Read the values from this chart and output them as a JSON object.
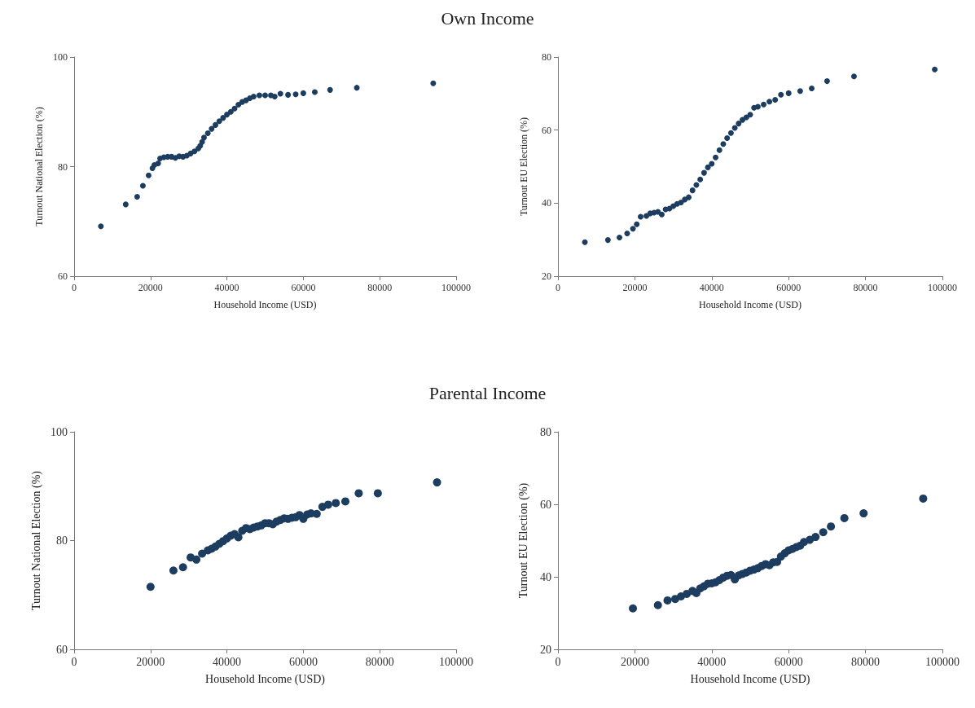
{
  "chart_data": [
    {
      "type": "scatter",
      "title": "Own Income",
      "xlabel": "Household Income (USD)",
      "ylabel": "Turnout National Election (%)",
      "marker": "circle",
      "xlim": [
        0,
        100000
      ],
      "xticks": [
        0,
        20000,
        40000,
        60000,
        80000,
        100000
      ],
      "ylim": [
        60,
        100
      ],
      "yticks": [
        60,
        80,
        100
      ],
      "x": [
        7000,
        13500,
        16500,
        18000,
        19500,
        20500,
        21000,
        22000,
        22500,
        23500,
        24500,
        25500,
        26500,
        27500,
        28500,
        29500,
        30500,
        31500,
        32500,
        33000,
        33500,
        34000,
        35000,
        36000,
        37000,
        38000,
        39000,
        40000,
        41000,
        42000,
        43000,
        44000,
        45000,
        46000,
        47000,
        48500,
        50000,
        51500,
        52500,
        54000,
        56000,
        58000,
        60000,
        63000,
        67000,
        74000,
        94000
      ],
      "series": [
        {
          "color": "#1c3d5f",
          "values": [
            69.1,
            73.1,
            74.5,
            76.5,
            78.4,
            79.7,
            80.3,
            80.6,
            81.5,
            81.7,
            81.8,
            81.8,
            81.6,
            81.9,
            81.8,
            82.0,
            82.4,
            82.8,
            83.3,
            83.8,
            84.5,
            85.3,
            86.1,
            86.9,
            87.6,
            88.3,
            88.9,
            89.5,
            90.0,
            90.6,
            91.3,
            91.8,
            92.1,
            92.5,
            92.8,
            93.0,
            93.0,
            93.0,
            92.8,
            93.3,
            93.1,
            93.2,
            93.4,
            93.6,
            94.0,
            94.4,
            95.2
          ]
        }
      ]
    },
    {
      "type": "scatter",
      "xlabel": "Household Income (USD)",
      "ylabel": "Turnout EU Election (%)",
      "marker": "circle",
      "xlim": [
        0,
        100000
      ],
      "xticks": [
        0,
        20000,
        40000,
        60000,
        80000,
        100000
      ],
      "ylim": [
        20,
        80
      ],
      "yticks": [
        20,
        40,
        60,
        80
      ],
      "x": [
        7000,
        13000,
        16000,
        18000,
        19500,
        20500,
        21500,
        23000,
        24000,
        25000,
        26000,
        27000,
        28000,
        29000,
        30000,
        31000,
        32000,
        33000,
        34000,
        35000,
        36000,
        37000,
        38000,
        39000,
        40000,
        41000,
        42000,
        43000,
        44000,
        45000,
        46000,
        47000,
        48000,
        49000,
        50000,
        51000,
        52000,
        53500,
        55000,
        56500,
        58000,
        60000,
        63000,
        66000,
        70000,
        77000,
        98000
      ],
      "series": [
        {
          "color": "#1c3d5f",
          "values": [
            29.3,
            29.9,
            30.6,
            31.7,
            33.0,
            34.2,
            36.3,
            36.5,
            37.2,
            37.4,
            37.6,
            36.9,
            38.3,
            38.5,
            39.2,
            39.8,
            40.2,
            41.0,
            41.6,
            43.5,
            45.0,
            46.5,
            48.3,
            49.8,
            50.8,
            52.5,
            54.5,
            56.2,
            57.8,
            59.2,
            60.6,
            61.8,
            62.8,
            63.5,
            64.2,
            66.1,
            66.4,
            67.0,
            67.8,
            68.3,
            69.7,
            70.1,
            70.7,
            71.4,
            73.4,
            74.7,
            76.6
          ]
        }
      ]
    },
    {
      "type": "scatter",
      "title": "Parental Income",
      "xlabel": "Household Income (USD)",
      "ylabel": "Turnout National Election (%)",
      "marker": "circle",
      "xlim": [
        0,
        100000
      ],
      "xticks": [
        0,
        20000,
        40000,
        60000,
        80000,
        100000
      ],
      "ylim": [
        60,
        100
      ],
      "yticks": [
        60,
        80,
        100
      ],
      "x": [
        20000,
        26000,
        28500,
        30500,
        32000,
        33500,
        35000,
        36000,
        37000,
        38000,
        39000,
        40000,
        41000,
        42000,
        43000,
        44000,
        45000,
        46000,
        47000,
        48000,
        49000,
        50000,
        51000,
        52000,
        53000,
        54000,
        55000,
        56000,
        57000,
        58000,
        59000,
        60000,
        61000,
        62000,
        63500,
        65000,
        66500,
        68500,
        71000,
        74500,
        79500,
        95000
      ],
      "series": [
        {
          "color": "#1c3d5f",
          "values": [
            71.5,
            74.5,
            75.1,
            76.9,
            76.5,
            77.6,
            78.2,
            78.5,
            78.9,
            79.4,
            79.9,
            80.4,
            80.9,
            81.2,
            80.6,
            81.8,
            82.3,
            82.1,
            82.4,
            82.6,
            82.8,
            83.2,
            83.2,
            83.0,
            83.5,
            83.8,
            84.1,
            84.0,
            84.2,
            84.3,
            84.7,
            84.0,
            84.8,
            85.0,
            84.9,
            86.2,
            86.6,
            86.9,
            87.2,
            88.7,
            88.7,
            90.7
          ]
        }
      ]
    },
    {
      "type": "scatter",
      "xlabel": "Household Income (USD)",
      "ylabel": "Turnout EU Election (%)",
      "marker": "circle",
      "xlim": [
        0,
        100000
      ],
      "xticks": [
        0,
        20000,
        40000,
        60000,
        80000,
        100000
      ],
      "ylim": [
        20,
        80
      ],
      "yticks": [
        20,
        40,
        60,
        80
      ],
      "x": [
        19500,
        26000,
        28500,
        30500,
        32000,
        33500,
        35000,
        36000,
        37000,
        38000,
        39000,
        40000,
        41000,
        42000,
        43000,
        44000,
        45000,
        46000,
        47000,
        48000,
        49000,
        50000,
        51000,
        52000,
        53000,
        54000,
        55000,
        56000,
        57000,
        58000,
        59000,
        60000,
        61000,
        62000,
        63000,
        64000,
        65500,
        67000,
        69000,
        71000,
        74500,
        79500,
        95000
      ],
      "series": [
        {
          "color": "#1c3d5f",
          "values": [
            31.3,
            32.2,
            33.5,
            33.9,
            34.6,
            35.3,
            36.1,
            35.5,
            36.8,
            37.4,
            38.1,
            38.2,
            38.5,
            39.1,
            39.8,
            40.3,
            40.5,
            39.3,
            40.4,
            40.8,
            41.2,
            41.7,
            42.0,
            42.4,
            43.0,
            43.5,
            43.2,
            44.0,
            44.1,
            45.6,
            46.5,
            47.3,
            47.7,
            48.2,
            48.6,
            49.6,
            50.2,
            51.0,
            52.3,
            53.9,
            56.2,
            57.5,
            61.6
          ]
        }
      ]
    }
  ]
}
